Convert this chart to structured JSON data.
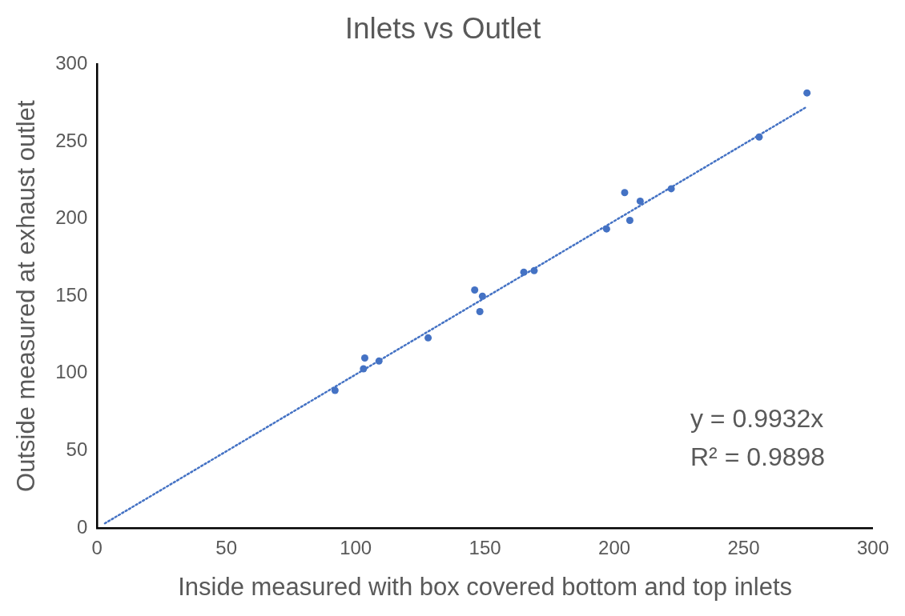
{
  "chart_data": {
    "type": "scatter",
    "title": "Inlets vs Outlet",
    "xlabel": "Inside measured with box covered bottom and top inlets",
    "ylabel": "Outside measured at exhaust outlet",
    "x": [
      92,
      103.5,
      103,
      109,
      128,
      146,
      149,
      148,
      165,
      169,
      197,
      204,
      206,
      210,
      222,
      256,
      274.5
    ],
    "xlim": [
      0,
      300
    ],
    "xticks": [
      0,
      50,
      100,
      150,
      200,
      250,
      300
    ],
    "ylim": [
      0,
      300
    ],
    "yticks": [
      0,
      50,
      100,
      150,
      200,
      250,
      300
    ],
    "grid": false,
    "legend": false,
    "marker": "circle",
    "series": [
      {
        "type": "scatter",
        "color": "#4472c4",
        "values": [
          89,
          110,
          103,
          108,
          123,
          154,
          150,
          140,
          165.5,
          166.5,
          193.5,
          217,
          199,
          211.5,
          219.5,
          253,
          281.5
        ]
      },
      {
        "type": "line",
        "color": "#4472c4",
        "line_style": "dotted",
        "marker": "none",
        "x": [
          3,
          274.5
        ],
        "values": [
          3,
          272.6
        ]
      }
    ],
    "annotations": [
      "y = 0.9932x",
      "R² = 0.9898"
    ]
  }
}
